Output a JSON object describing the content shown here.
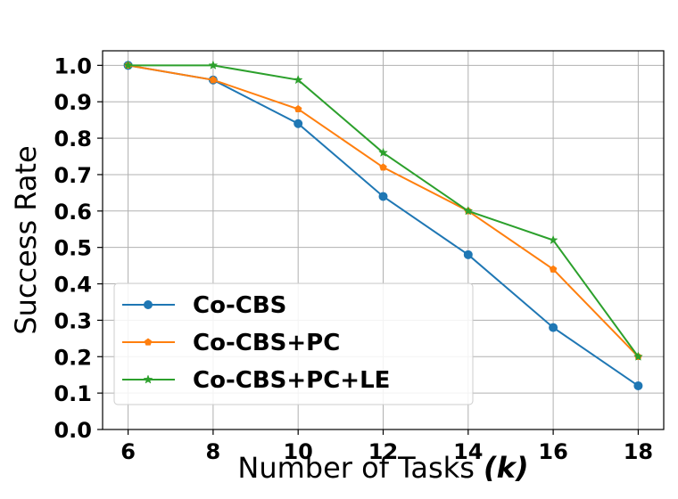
{
  "chart_data": {
    "type": "line",
    "xlabel_main": "Number of Tasks ",
    "xlabel_var": "(k)",
    "ylabel": "Success Rate",
    "x": [
      6,
      8,
      10,
      12,
      14,
      16,
      18
    ],
    "xticks": [
      "6",
      "8",
      "10",
      "12",
      "14",
      "16",
      "18"
    ],
    "yticks": [
      "0.0",
      "0.1",
      "0.2",
      "0.3",
      "0.4",
      "0.5",
      "0.6",
      "0.7",
      "0.8",
      "0.9",
      "1.0"
    ],
    "xlim": [
      5.4,
      18.6
    ],
    "ylim": [
      0.0,
      1.04
    ],
    "grid": true,
    "legend_position": "lower-left",
    "series": [
      {
        "name": "Co-CBS",
        "color": "#1f77b4",
        "marker": "circle",
        "values": [
          1.0,
          0.96,
          0.84,
          0.64,
          0.48,
          0.28,
          0.12
        ]
      },
      {
        "name": "Co-CBS+PC",
        "color": "#ff7f0e",
        "marker": "pentagon",
        "values": [
          1.0,
          0.96,
          0.88,
          0.72,
          0.6,
          0.44,
          0.2
        ]
      },
      {
        "name": "Co-CBS+PC+LE",
        "color": "#2ca02c",
        "marker": "star",
        "values": [
          1.0,
          1.0,
          0.96,
          0.76,
          0.6,
          0.52,
          0.2
        ]
      }
    ]
  }
}
